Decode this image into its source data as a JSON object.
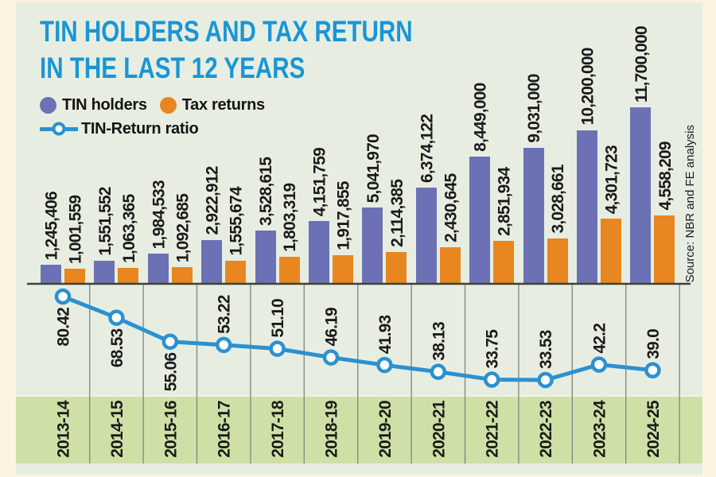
{
  "header": {
    "title_line1": "TIN HOLDERS AND TAX RETURN",
    "title_line2": "IN THE LAST 12 YEARS"
  },
  "legend": {
    "tin_holders_label": "TIN holders",
    "tax_returns_label": "Tax returns",
    "ratio_label": "TIN-Return ratio"
  },
  "source": "Source: NBR and FE analysis",
  "colors": {
    "outer_bg": "#fdf3e3",
    "panel_bg": "#e7eee1",
    "band_bg": "#cfe0a6",
    "title": "#1b95d5",
    "tin_bar": "#6b71b4",
    "tax_bar": "#e8861f",
    "ratio_line": "#2b91d1",
    "grid": "#878b82",
    "baseline": "#3e4139",
    "label_text": "#1a1a1a"
  },
  "chart_data": {
    "type": "combo-bar-line",
    "categories": [
      "2013-14",
      "2014-15",
      "2015-16",
      "2016-17",
      "2017-18",
      "2018-19",
      "2019-20",
      "2020-21",
      "2021-22",
      "2022-23",
      "2023-24",
      "2024-25"
    ],
    "series": [
      {
        "name": "TIN holders",
        "type": "bar",
        "values": [
          1245406,
          1551552,
          1984533,
          2922912,
          3528615,
          4151759,
          5041970,
          6374122,
          8449000,
          9031000,
          10200000,
          11700000
        ],
        "labels": [
          "1,245,406",
          "1,551,552",
          "1,984,533",
          "2,922,912",
          "3,528,615",
          "4,151,759",
          "5,041,970",
          "6,374,122",
          "8,449,000",
          "9,031,000",
          "10,200,000",
          "11,700,000"
        ]
      },
      {
        "name": "Tax returns",
        "type": "bar",
        "values": [
          1001559,
          1063365,
          1092685,
          1555674,
          1803319,
          1917855,
          2114385,
          2430645,
          2851934,
          3028661,
          4301723,
          4558209
        ],
        "labels": [
          "1,001,559",
          "1,063,365",
          "1,092,685",
          "1,555,674",
          "1,803,319",
          "1,917,855",
          "2,114,385",
          "2,430,645",
          "2,851,934",
          "3,028,661",
          "4,301,723",
          "4,558,209"
        ]
      },
      {
        "name": "TIN-Return ratio",
        "type": "line",
        "values": [
          80.42,
          68.53,
          55.06,
          53.22,
          51.1,
          46.19,
          41.93,
          38.13,
          33.75,
          33.53,
          42.2,
          39.0
        ],
        "labels": [
          "80.42",
          "68.53",
          "55.06",
          "53.22",
          "51.10",
          "46.19",
          "41.93",
          "38.13",
          "33.75",
          "33.53",
          "42.2",
          "39.0"
        ]
      }
    ],
    "title": "TIN HOLDERS AND TAX RETURN IN THE LAST 12 YEARS",
    "xlabel": "",
    "ylabel": "",
    "legend_position": "top-left",
    "grid": "vertical-dividers-lower-area",
    "bar_value_labels": "rotated-90-above-bars",
    "line_value_labels": "rotated-90-near-points"
  }
}
